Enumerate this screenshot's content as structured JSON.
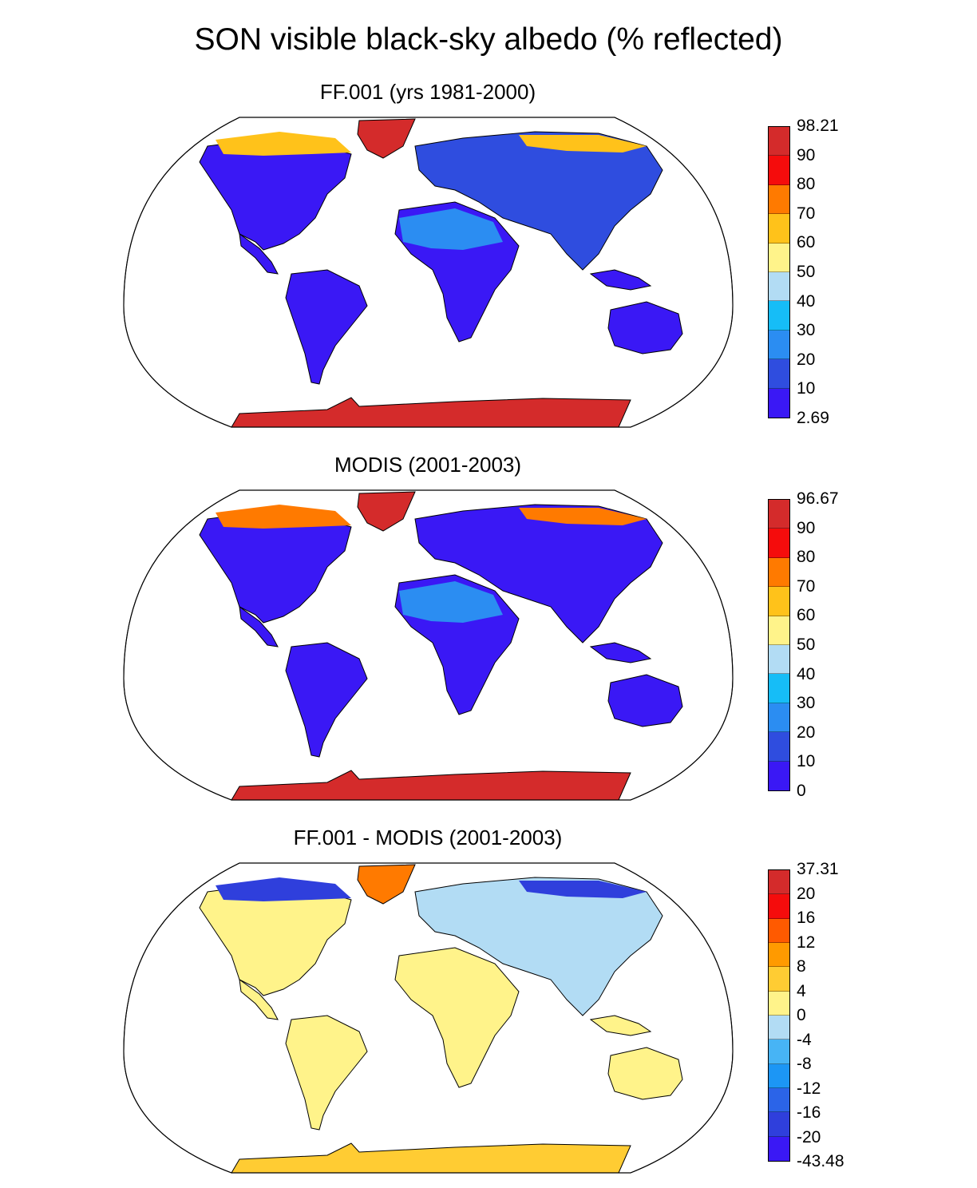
{
  "title": "SON visible black-sky albedo (% reflected)",
  "panels": [
    {
      "id": "ff001",
      "title": "FF.001 (yrs 1981-2000)",
      "colorbar": {
        "labels": [
          "98.21",
          "90",
          "80",
          "70",
          "60",
          "50",
          "40",
          "30",
          "20",
          "10",
          "2.69"
        ],
        "colors": [
          "#d42b2b",
          "#f50c0c",
          "#ff7a00",
          "#ffc21a",
          "#fff38a",
          "#b2dcf4",
          "#16bdf7",
          "#2b8df2",
          "#2f4ddf",
          "#3a18f5"
        ]
      },
      "fills": {
        "land": "#3a18f5",
        "land2": "#2f4ddf",
        "africa": "#3a18f5",
        "sahara": "#2b8df2",
        "greenland": "#d42b2b",
        "antarctica": "#d42b2b",
        "arctic": "#ffc21a",
        "canada_n": "#fff38a"
      }
    },
    {
      "id": "modis",
      "title": "MODIS (2001-2003)",
      "colorbar": {
        "labels": [
          "96.67",
          "90",
          "80",
          "70",
          "60",
          "50",
          "40",
          "30",
          "20",
          "10",
          "0"
        ],
        "colors": [
          "#d42b2b",
          "#f50c0c",
          "#ff7a00",
          "#ffc21a",
          "#fff38a",
          "#b2dcf4",
          "#16bdf7",
          "#2b8df2",
          "#2f4ddf",
          "#3a18f5"
        ]
      },
      "fills": {
        "land": "#3a18f5",
        "land2": "#3a18f5",
        "africa": "#3a18f5",
        "sahara": "#2b8df2",
        "greenland": "#d42b2b",
        "antarctica": "#d42b2b",
        "arctic": "#ff7a00",
        "canada_n": "#ffc21a"
      }
    },
    {
      "id": "diff",
      "title": "FF.001 - MODIS (2001-2003)",
      "colorbar": {
        "labels": [
          "37.31",
          "20",
          "16",
          "12",
          "8",
          "4",
          "0",
          "-4",
          "-8",
          "-12",
          "-16",
          "-20",
          "-43.48"
        ],
        "colors": [
          "#d42b2b",
          "#f50c0c",
          "#ff5a00",
          "#ff9a00",
          "#ffcc33",
          "#fff38a",
          "#b2dcf4",
          "#47b4f5",
          "#1c96f5",
          "#2b64e8",
          "#2f3fdc",
          "#3a18f5"
        ]
      },
      "fills": {
        "land": "#fff38a",
        "land2": "#b2dcf4",
        "africa": "#fff38a",
        "sahara": "#fff38a",
        "greenland": "#ff7a00",
        "antarctica": "#ffcc33",
        "arctic": "#2f3fdc",
        "canada_n": "#3a18f5"
      }
    }
  ]
}
